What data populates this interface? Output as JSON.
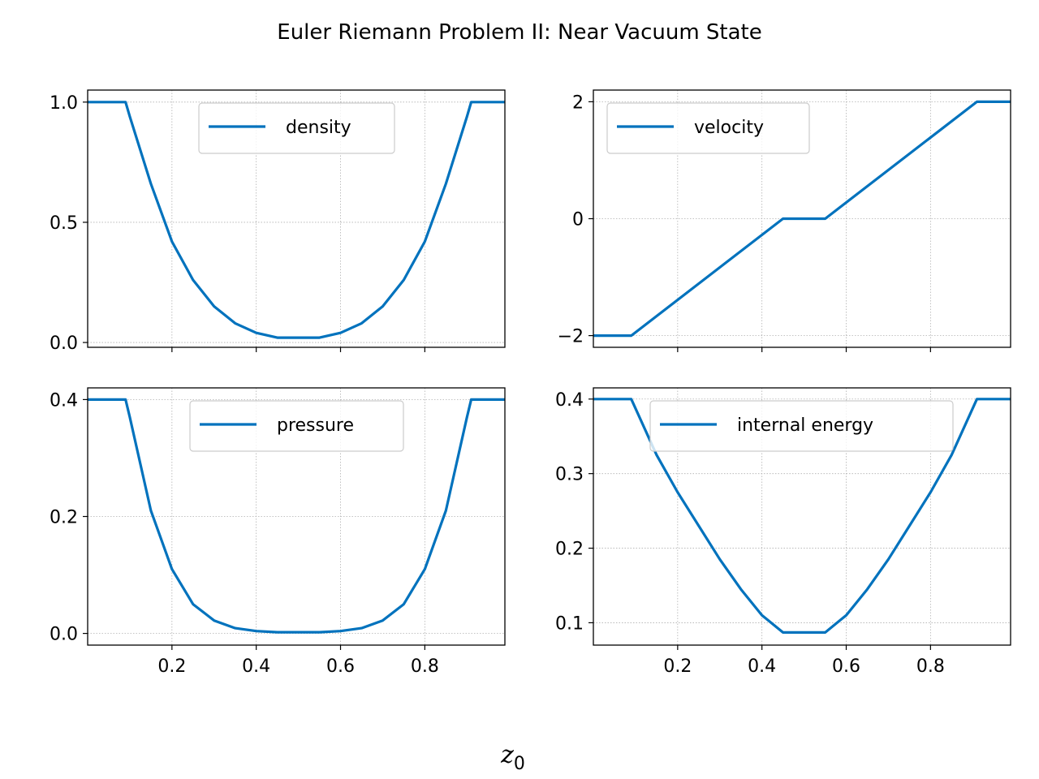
{
  "figure": {
    "title": "Euler Riemann Problem II: Near Vacuum State",
    "xlabel": "z",
    "xlabel_subscript": "0",
    "line_color": "#0072BD"
  },
  "chart_data": [
    {
      "type": "line",
      "series": [
        {
          "name": "density",
          "x": [
            0.0,
            0.08,
            0.09,
            0.1,
            0.15,
            0.2,
            0.25,
            0.3,
            0.35,
            0.4,
            0.45,
            0.55,
            0.6,
            0.65,
            0.7,
            0.75,
            0.8,
            0.85,
            0.9,
            0.91,
            0.92,
            0.99
          ],
          "y": [
            1.0,
            1.0,
            1.0,
            0.94,
            0.66,
            0.42,
            0.26,
            0.15,
            0.08,
            0.04,
            0.02,
            0.02,
            0.04,
            0.08,
            0.15,
            0.26,
            0.42,
            0.66,
            0.94,
            1.0,
            1.0,
            1.0
          ]
        }
      ],
      "xlim": [
        0.0,
        0.99
      ],
      "ylim": [
        -0.02,
        1.05
      ],
      "xticks": [
        0.2,
        0.4,
        0.6,
        0.8
      ],
      "xtick_labels": [
        "",
        "",
        "",
        ""
      ],
      "yticks": [
        0.0,
        0.5,
        1.0
      ],
      "ytick_labels": [
        "0.0",
        "0.5",
        "1.0"
      ],
      "grid": true,
      "legend": "upper center"
    },
    {
      "type": "line",
      "series": [
        {
          "name": "velocity",
          "x": [
            0.0,
            0.08,
            0.09,
            0.45,
            0.55,
            0.91,
            0.92,
            0.99
          ],
          "y": [
            -2.0,
            -2.0,
            -2.0,
            0.0,
            0.0,
            2.0,
            2.0,
            2.0
          ]
        }
      ],
      "xlim": [
        0.0,
        0.99
      ],
      "ylim": [
        -2.2,
        2.2
      ],
      "xticks": [
        0.2,
        0.4,
        0.6,
        0.8
      ],
      "xtick_labels": [
        "",
        "",
        "",
        ""
      ],
      "yticks": [
        -2,
        0,
        2
      ],
      "ytick_labels": [
        "−2",
        "0",
        "2"
      ],
      "grid": true,
      "legend": "upper left"
    },
    {
      "type": "line",
      "series": [
        {
          "name": "pressure",
          "x": [
            0.0,
            0.08,
            0.09,
            0.1,
            0.15,
            0.2,
            0.25,
            0.3,
            0.35,
            0.4,
            0.45,
            0.55,
            0.6,
            0.65,
            0.7,
            0.75,
            0.8,
            0.85,
            0.9,
            0.91,
            0.92,
            0.99
          ],
          "y": [
            0.4,
            0.4,
            0.4,
            0.37,
            0.21,
            0.11,
            0.05,
            0.022,
            0.009,
            0.004,
            0.002,
            0.002,
            0.004,
            0.009,
            0.022,
            0.05,
            0.11,
            0.21,
            0.37,
            0.4,
            0.4,
            0.4
          ]
        }
      ],
      "xlim": [
        0.0,
        0.99
      ],
      "ylim": [
        -0.02,
        0.42
      ],
      "xticks": [
        0.2,
        0.4,
        0.6,
        0.8
      ],
      "xtick_labels": [
        "0.2",
        "0.4",
        "0.6",
        "0.8"
      ],
      "yticks": [
        0.0,
        0.2,
        0.4
      ],
      "ytick_labels": [
        "0.0",
        "0.2",
        "0.4"
      ],
      "grid": true,
      "legend": "upper center"
    },
    {
      "type": "line",
      "series": [
        {
          "name": "internal energy",
          "x": [
            0.0,
            0.08,
            0.09,
            0.15,
            0.2,
            0.25,
            0.3,
            0.35,
            0.4,
            0.45,
            0.55,
            0.6,
            0.65,
            0.7,
            0.75,
            0.8,
            0.85,
            0.91,
            0.92,
            0.99
          ],
          "y": [
            0.4,
            0.4,
            0.4,
            0.325,
            0.275,
            0.23,
            0.185,
            0.145,
            0.11,
            0.087,
            0.087,
            0.11,
            0.145,
            0.185,
            0.23,
            0.275,
            0.325,
            0.4,
            0.4,
            0.4
          ]
        }
      ],
      "xlim": [
        0.0,
        0.99
      ],
      "ylim": [
        0.07,
        0.415
      ],
      "xticks": [
        0.2,
        0.4,
        0.6,
        0.8
      ],
      "xtick_labels": [
        "0.2",
        "0.4",
        "0.6",
        "0.8"
      ],
      "yticks": [
        0.1,
        0.2,
        0.3,
        0.4
      ],
      "ytick_labels": [
        "0.1",
        "0.2",
        "0.3",
        "0.4"
      ],
      "grid": true,
      "legend": "upper center"
    }
  ]
}
